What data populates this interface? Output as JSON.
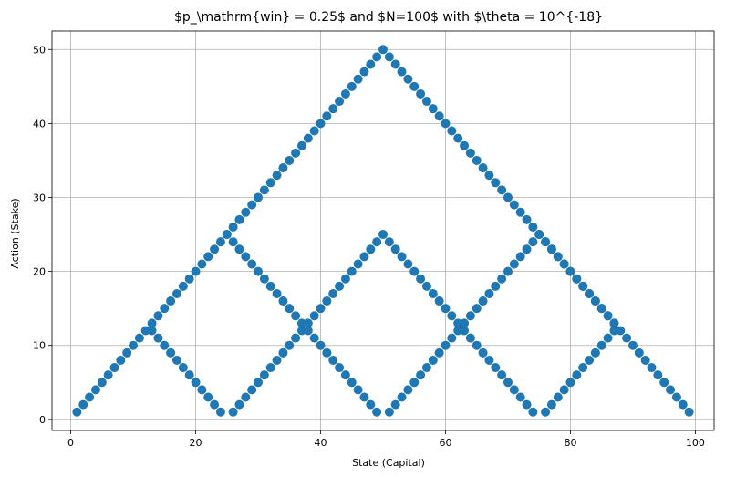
{
  "chart_data": {
    "type": "scatter",
    "title": "$p_\\mathrm{win} = 0.25$ and $N=100$ with $\\theta = 10^{-18}",
    "xlabel": "State (Capital)",
    "ylabel": "Action (Stake)",
    "xlim": [
      -3,
      103
    ],
    "ylim": [
      -1.5,
      52.5
    ],
    "xticks": [
      0,
      20,
      40,
      60,
      80,
      100
    ],
    "yticks": [
      0,
      10,
      20,
      30,
      40,
      50
    ],
    "xtick_labels": [
      "0",
      "20",
      "40",
      "60",
      "80",
      "100"
    ],
    "ytick_labels": [
      "0",
      "10",
      "20",
      "30",
      "40",
      "50"
    ],
    "grid": true,
    "legend": "none",
    "marker_color": "#1f77b4",
    "points": [
      [
        1,
        1
      ],
      [
        2,
        2
      ],
      [
        3,
        3
      ],
      [
        4,
        4
      ],
      [
        5,
        5
      ],
      [
        6,
        6
      ],
      [
        7,
        7
      ],
      [
        8,
        8
      ],
      [
        9,
        9
      ],
      [
        10,
        10
      ],
      [
        11,
        11
      ],
      [
        12,
        12
      ],
      [
        13,
        12
      ],
      [
        13,
        13
      ],
      [
        14,
        11
      ],
      [
        14,
        14
      ],
      [
        15,
        10
      ],
      [
        15,
        15
      ],
      [
        16,
        9
      ],
      [
        16,
        16
      ],
      [
        17,
        8
      ],
      [
        17,
        17
      ],
      [
        18,
        7
      ],
      [
        18,
        18
      ],
      [
        19,
        6
      ],
      [
        19,
        19
      ],
      [
        20,
        5
      ],
      [
        20,
        20
      ],
      [
        21,
        4
      ],
      [
        21,
        21
      ],
      [
        22,
        3
      ],
      [
        22,
        22
      ],
      [
        23,
        2
      ],
      [
        23,
        23
      ],
      [
        24,
        1
      ],
      [
        24,
        24
      ],
      [
        25,
        25
      ],
      [
        26,
        1
      ],
      [
        26,
        24
      ],
      [
        27,
        2
      ],
      [
        27,
        23
      ],
      [
        28,
        3
      ],
      [
        28,
        22
      ],
      [
        29,
        4
      ],
      [
        29,
        21
      ],
      [
        30,
        5
      ],
      [
        30,
        20
      ],
      [
        31,
        6
      ],
      [
        31,
        19
      ],
      [
        32,
        7
      ],
      [
        32,
        18
      ],
      [
        33,
        8
      ],
      [
        33,
        17
      ],
      [
        34,
        9
      ],
      [
        34,
        16
      ],
      [
        35,
        10
      ],
      [
        35,
        15
      ],
      [
        36,
        11
      ],
      [
        36,
        14
      ],
      [
        37,
        12
      ],
      [
        37,
        13
      ],
      [
        38,
        12
      ],
      [
        38,
        13
      ],
      [
        39,
        11
      ],
      [
        39,
        14
      ],
      [
        40,
        10
      ],
      [
        40,
        15
      ],
      [
        41,
        9
      ],
      [
        41,
        16
      ],
      [
        42,
        8
      ],
      [
        42,
        17
      ],
      [
        43,
        7
      ],
      [
        43,
        18
      ],
      [
        44,
        6
      ],
      [
        44,
        19
      ],
      [
        45,
        5
      ],
      [
        45,
        20
      ],
      [
        46,
        4
      ],
      [
        46,
        21
      ],
      [
        47,
        3
      ],
      [
        47,
        22
      ],
      [
        48,
        2
      ],
      [
        48,
        23
      ],
      [
        49,
        1
      ],
      [
        49,
        24
      ],
      [
        50,
        25
      ],
      [
        51,
        1
      ],
      [
        51,
        24
      ],
      [
        52,
        2
      ],
      [
        52,
        23
      ],
      [
        53,
        3
      ],
      [
        53,
        22
      ],
      [
        54,
        4
      ],
      [
        54,
        21
      ],
      [
        55,
        5
      ],
      [
        55,
        20
      ],
      [
        56,
        6
      ],
      [
        56,
        19
      ],
      [
        57,
        7
      ],
      [
        57,
        18
      ],
      [
        58,
        8
      ],
      [
        58,
        17
      ],
      [
        59,
        9
      ],
      [
        59,
        16
      ],
      [
        60,
        10
      ],
      [
        60,
        15
      ],
      [
        61,
        11
      ],
      [
        61,
        14
      ],
      [
        62,
        12
      ],
      [
        62,
        13
      ],
      [
        63,
        12
      ],
      [
        63,
        13
      ],
      [
        64,
        11
      ],
      [
        64,
        14
      ],
      [
        65,
        10
      ],
      [
        65,
        15
      ],
      [
        66,
        9
      ],
      [
        66,
        16
      ],
      [
        67,
        8
      ],
      [
        67,
        17
      ],
      [
        68,
        7
      ],
      [
        68,
        18
      ],
      [
        69,
        6
      ],
      [
        69,
        19
      ],
      [
        70,
        5
      ],
      [
        70,
        20
      ],
      [
        71,
        4
      ],
      [
        71,
        21
      ],
      [
        72,
        3
      ],
      [
        72,
        22
      ],
      [
        73,
        2
      ],
      [
        73,
        23
      ],
      [
        74,
        1
      ],
      [
        74,
        24
      ],
      [
        75,
        25
      ],
      [
        76,
        1
      ],
      [
        76,
        24
      ],
      [
        77,
        2
      ],
      [
        77,
        23
      ],
      [
        78,
        3
      ],
      [
        78,
        22
      ],
      [
        79,
        4
      ],
      [
        79,
        21
      ],
      [
        80,
        5
      ],
      [
        80,
        20
      ],
      [
        81,
        6
      ],
      [
        81,
        19
      ],
      [
        82,
        7
      ],
      [
        82,
        18
      ],
      [
        83,
        8
      ],
      [
        83,
        17
      ],
      [
        84,
        9
      ],
      [
        84,
        16
      ],
      [
        85,
        10
      ],
      [
        85,
        15
      ],
      [
        86,
        11
      ],
      [
        86,
        14
      ],
      [
        87,
        12
      ],
      [
        87,
        13
      ],
      [
        88,
        12
      ],
      [
        89,
        11
      ],
      [
        90,
        10
      ],
      [
        91,
        9
      ],
      [
        92,
        8
      ],
      [
        93,
        7
      ],
      [
        94,
        6
      ],
      [
        95,
        5
      ],
      [
        96,
        4
      ],
      [
        97,
        3
      ],
      [
        98,
        2
      ],
      [
        99,
        1
      ],
      [
        25,
        25
      ],
      [
        26,
        26
      ],
      [
        27,
        27
      ],
      [
        28,
        28
      ],
      [
        29,
        29
      ],
      [
        30,
        30
      ],
      [
        31,
        31
      ],
      [
        32,
        32
      ],
      [
        33,
        33
      ],
      [
        34,
        34
      ],
      [
        35,
        35
      ],
      [
        36,
        36
      ],
      [
        37,
        37
      ],
      [
        38,
        38
      ],
      [
        39,
        39
      ],
      [
        40,
        40
      ],
      [
        41,
        41
      ],
      [
        42,
        42
      ],
      [
        43,
        43
      ],
      [
        44,
        44
      ],
      [
        45,
        45
      ],
      [
        46,
        46
      ],
      [
        47,
        47
      ],
      [
        48,
        48
      ],
      [
        49,
        49
      ],
      [
        50,
        50
      ],
      [
        51,
        49
      ],
      [
        52,
        48
      ],
      [
        53,
        47
      ],
      [
        54,
        46
      ],
      [
        55,
        45
      ],
      [
        56,
        44
      ],
      [
        57,
        43
      ],
      [
        58,
        42
      ],
      [
        59,
        41
      ],
      [
        60,
        40
      ],
      [
        61,
        39
      ],
      [
        62,
        38
      ],
      [
        63,
        37
      ],
      [
        64,
        36
      ],
      [
        65,
        35
      ],
      [
        66,
        34
      ],
      [
        67,
        33
      ],
      [
        68,
        32
      ],
      [
        69,
        31
      ],
      [
        70,
        30
      ],
      [
        71,
        29
      ],
      [
        72,
        28
      ],
      [
        73,
        27
      ],
      [
        74,
        26
      ],
      [
        75,
        25
      ],
      [
        76,
        24
      ],
      [
        77,
        23
      ],
      [
        78,
        22
      ],
      [
        79,
        21
      ],
      [
        80,
        20
      ],
      [
        81,
        19
      ],
      [
        82,
        18
      ],
      [
        83,
        17
      ],
      [
        84,
        16
      ],
      [
        85,
        15
      ],
      [
        86,
        14
      ],
      [
        87,
        13
      ]
    ]
  }
}
